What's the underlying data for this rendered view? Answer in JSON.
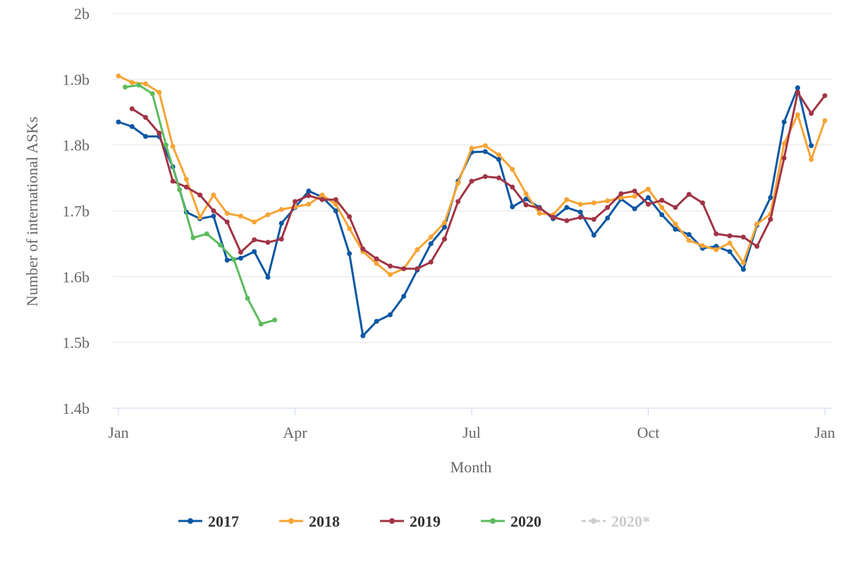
{
  "chart_data": {
    "type": "line",
    "title": "",
    "xlabel": "Month",
    "ylabel": "Number of international ASKs",
    "x_ticks": [
      "Jan",
      "Apr",
      "Jul",
      "Oct",
      "Jan"
    ],
    "y_ticks": [
      "1.4b",
      "1.5b",
      "1.6b",
      "1.7b",
      "1.8b",
      "1.9b",
      "2b"
    ],
    "ylim": [
      1.4,
      2.0
    ],
    "x_unit": "week of year",
    "xlim": [
      1,
      53
    ],
    "grid": "horizontal",
    "legend_position": "bottom",
    "series": [
      {
        "name": "2017",
        "color": "#0b57a4",
        "x": [
          1,
          2,
          3,
          4,
          5,
          6,
          7,
          8,
          9,
          10,
          11,
          12,
          13,
          14,
          15,
          16,
          17,
          18,
          19,
          20,
          21,
          22,
          23,
          24,
          25,
          26,
          27,
          28,
          29,
          30,
          31,
          32,
          33,
          34,
          35,
          36,
          37,
          38,
          39,
          40,
          41,
          42,
          43,
          44,
          45,
          46,
          47,
          48,
          49,
          50,
          51,
          52
        ],
        "values": [
          1.835,
          1.828,
          1.813,
          1.813,
          1.767,
          1.698,
          1.688,
          1.692,
          1.625,
          1.628,
          1.638,
          1.599,
          1.681,
          1.705,
          1.73,
          1.721,
          1.7,
          1.635,
          1.51,
          1.532,
          1.542,
          1.57,
          1.61,
          1.65,
          1.675,
          1.745,
          1.789,
          1.79,
          1.778,
          1.706,
          1.718,
          1.705,
          1.688,
          1.705,
          1.698,
          1.663,
          1.689,
          1.718,
          1.703,
          1.72,
          1.694,
          1.672,
          1.664,
          1.643,
          1.646,
          1.638,
          1.611,
          1.678,
          1.72,
          1.835,
          1.887,
          1.799
        ]
      },
      {
        "name": "2018",
        "color": "#f7a434",
        "x": [
          1,
          2,
          3,
          4,
          5,
          6,
          7,
          8,
          9,
          10,
          11,
          12,
          13,
          14,
          15,
          16,
          17,
          18,
          19,
          20,
          21,
          22,
          23,
          24,
          25,
          26,
          27,
          28,
          29,
          30,
          31,
          32,
          33,
          34,
          35,
          36,
          37,
          38,
          39,
          40,
          41,
          42,
          43,
          44,
          45,
          46,
          47,
          48,
          49,
          50,
          51,
          52,
          53
        ],
        "values": [
          1.905,
          1.895,
          1.893,
          1.88,
          1.798,
          1.748,
          1.69,
          1.724,
          1.696,
          1.692,
          1.683,
          1.694,
          1.702,
          1.706,
          1.71,
          1.724,
          1.71,
          1.673,
          1.638,
          1.62,
          1.603,
          1.612,
          1.641,
          1.66,
          1.682,
          1.742,
          1.795,
          1.799,
          1.785,
          1.763,
          1.726,
          1.696,
          1.694,
          1.717,
          1.71,
          1.712,
          1.715,
          1.72,
          1.722,
          1.733,
          1.705,
          1.68,
          1.655,
          1.647,
          1.641,
          1.651,
          1.621,
          1.68,
          1.695,
          1.802,
          1.846,
          1.778,
          1.837
        ]
      },
      {
        "name": "2019",
        "color": "#a13446",
        "x": [
          2,
          3,
          4,
          5,
          6,
          7,
          8,
          9,
          10,
          11,
          12,
          13,
          14,
          15,
          16,
          17,
          18,
          19,
          20,
          21,
          22,
          23,
          24,
          25,
          26,
          27,
          28,
          29,
          30,
          31,
          32,
          33,
          34,
          35,
          36,
          37,
          38,
          39,
          40,
          41,
          42,
          43,
          44,
          45,
          46,
          47,
          48,
          49,
          50,
          51,
          52,
          53
        ],
        "values": [
          1.855,
          1.842,
          1.818,
          1.745,
          1.736,
          1.724,
          1.7,
          1.683,
          1.637,
          1.656,
          1.652,
          1.657,
          1.714,
          1.723,
          1.717,
          1.717,
          1.691,
          1.642,
          1.627,
          1.616,
          1.612,
          1.612,
          1.622,
          1.657,
          1.714,
          1.745,
          1.752,
          1.75,
          1.736,
          1.709,
          1.704,
          1.69,
          1.685,
          1.69,
          1.687,
          1.705,
          1.726,
          1.73,
          1.71,
          1.716,
          1.705,
          1.725,
          1.712,
          1.665,
          1.662,
          1.66,
          1.646,
          1.687,
          1.78,
          1.88,
          1.848,
          1.875
        ]
      },
      {
        "name": "2020",
        "color": "#5cbb5e",
        "x": [
          1.5,
          2.5,
          3.5,
          4.5,
          5.5,
          6.5,
          7.5,
          8.5,
          9.5,
          10.5,
          11.5,
          12.5
        ],
        "values": [
          1.888,
          1.891,
          1.878,
          1.8,
          1.732,
          1.659,
          1.665,
          1.648,
          1.626,
          1.567,
          1.528,
          1.534
        ]
      }
    ],
    "legend": [
      {
        "name": "2017",
        "color": "#0b57a4",
        "muted": false
      },
      {
        "name": "2018",
        "color": "#f7a434",
        "muted": false
      },
      {
        "name": "2019",
        "color": "#a13446",
        "muted": false
      },
      {
        "name": "2020",
        "color": "#5cbb5e",
        "muted": false
      },
      {
        "name": "2020*",
        "color": "#cccccc",
        "muted": true
      }
    ]
  }
}
